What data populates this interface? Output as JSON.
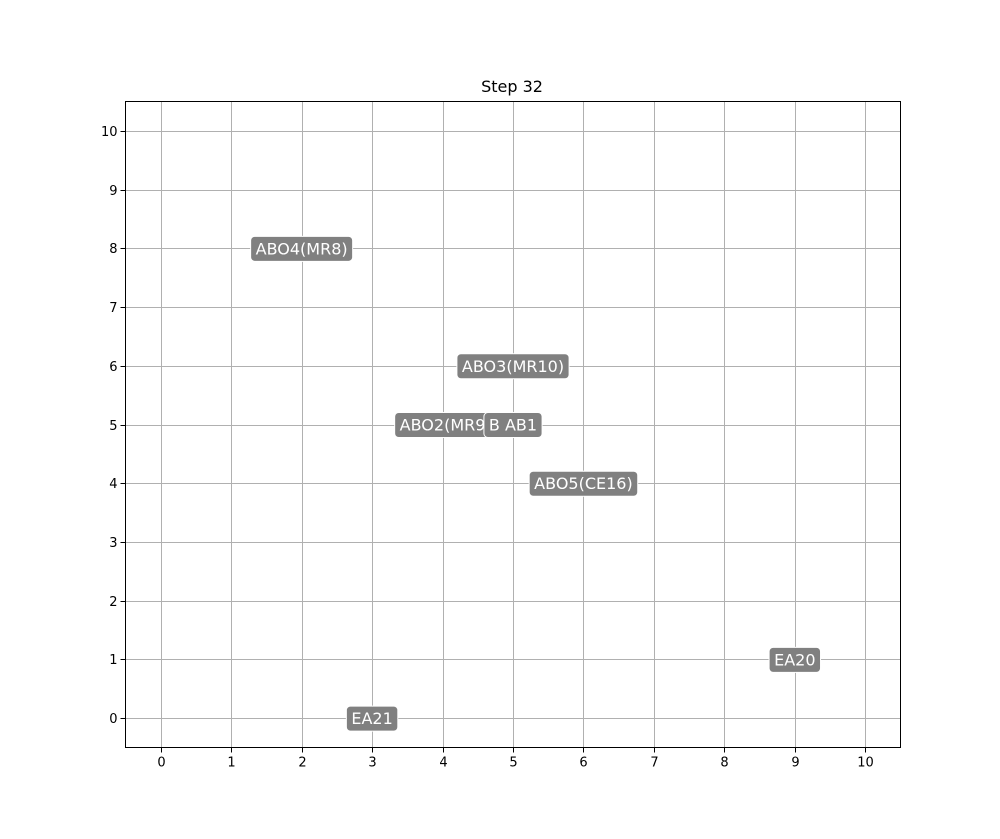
{
  "chart_data": {
    "type": "scatter",
    "title": "Step 32",
    "xlabel": "",
    "ylabel": "",
    "xlim": [
      -0.5,
      10.5
    ],
    "ylim": [
      -0.5,
      10.5
    ],
    "xticks": [
      0,
      1,
      2,
      3,
      4,
      5,
      6,
      7,
      8,
      9,
      10
    ],
    "yticks": [
      0,
      1,
      2,
      3,
      4,
      5,
      6,
      7,
      8,
      9,
      10
    ],
    "grid": true,
    "label_color": "#808080",
    "label_text_color": "#ffffff",
    "points": [
      {
        "label": "ABO4(MR8)",
        "x": 2,
        "y": 8
      },
      {
        "label": "ABO3(MR10)",
        "x": 5,
        "y": 6
      },
      {
        "label": "ABO2(MR9",
        "x": 4,
        "y": 5
      },
      {
        "label": "B AB1",
        "x": 5,
        "y": 5
      },
      {
        "label": "ABO5(CE16)",
        "x": 6,
        "y": 4
      },
      {
        "label": "EA20",
        "x": 9,
        "y": 1
      },
      {
        "label": "EA21",
        "x": 3,
        "y": 0
      }
    ]
  }
}
